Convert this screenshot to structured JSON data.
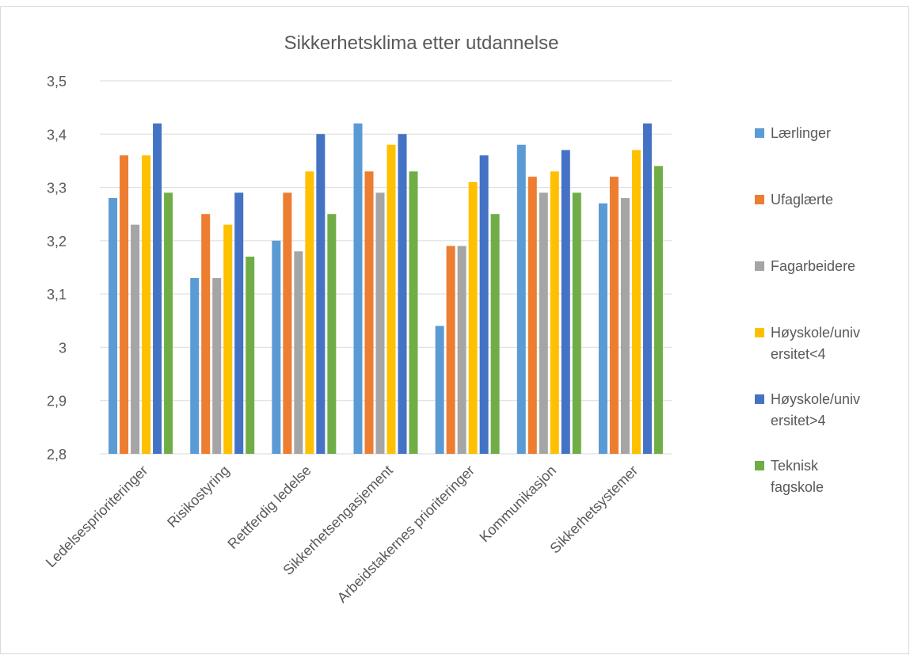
{
  "chart_data": {
    "type": "bar",
    "title": "Sikkerhetsklima etter utdannelse",
    "xlabel": "",
    "ylabel": "",
    "ylim": [
      2.8,
      3.5
    ],
    "yticks": [
      "3,5",
      "3,4",
      "3,3",
      "3,2",
      "3,1",
      "3",
      "2,9",
      "2,8"
    ],
    "ytick_values": [
      3.5,
      3.4,
      3.3,
      3.2,
      3.1,
      3.0,
      2.9,
      2.8
    ],
    "grid": true,
    "legend_position": "right",
    "categories": [
      "Ledelsesprioriteringer",
      "Risikostyring",
      "Rettferdig ledelse",
      "Sikkerhetsengasjement",
      "Arbeidstakernes prioriteringer",
      "Kommunikasjon",
      "Sikkerhetsystemer"
    ],
    "series": [
      {
        "name": "Lærlinger",
        "legend_lines": [
          "Lærlinger"
        ],
        "color": "#5b9bd5",
        "values": [
          3.28,
          3.13,
          3.2,
          3.42,
          3.04,
          3.38,
          3.27
        ]
      },
      {
        "name": "Ufaglærte",
        "legend_lines": [
          "Ufaglærte"
        ],
        "color": "#ed7d31",
        "values": [
          3.36,
          3.25,
          3.29,
          3.33,
          3.19,
          3.32,
          3.32
        ]
      },
      {
        "name": "Fagarbeidere",
        "legend_lines": [
          "Fagarbeidere"
        ],
        "color": "#a5a5a5",
        "values": [
          3.23,
          3.13,
          3.18,
          3.29,
          3.19,
          3.29,
          3.28
        ]
      },
      {
        "name": "Høyskole/universitet<4",
        "legend_lines": [
          "Høyskole/univ",
          "ersitet<4"
        ],
        "color": "#ffc000",
        "values": [
          3.36,
          3.23,
          3.33,
          3.38,
          3.31,
          3.33,
          3.37
        ]
      },
      {
        "name": "Høyskole/universitet>4",
        "legend_lines": [
          "Høyskole/univ",
          "ersitet>4"
        ],
        "color": "#4472c4",
        "values": [
          3.42,
          3.29,
          3.4,
          3.4,
          3.36,
          3.37,
          3.42
        ]
      },
      {
        "name": "Teknisk fagskole",
        "legend_lines": [
          "Teknisk",
          "fagskole"
        ],
        "color": "#70ad47",
        "values": [
          3.29,
          3.17,
          3.25,
          3.33,
          3.25,
          3.29,
          3.34
        ]
      }
    ]
  }
}
